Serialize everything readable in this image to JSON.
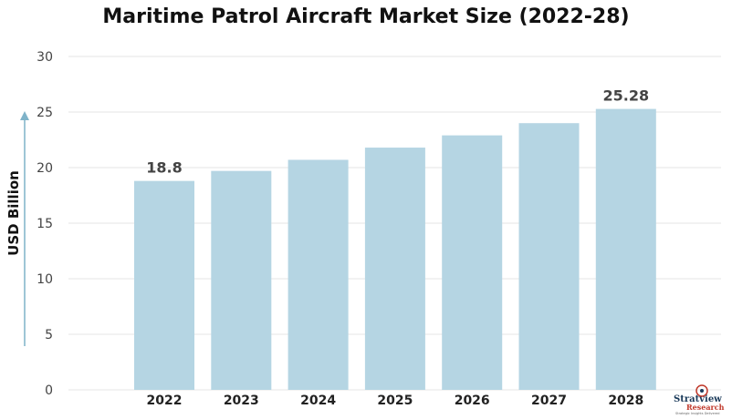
{
  "chart_data": {
    "type": "bar",
    "title": "Maritime Patrol Aircraft Market Size (2022-28)",
    "xlabel": "",
    "ylabel": "USD Billion",
    "categories": [
      "2022",
      "2023",
      "2024",
      "2025",
      "2026",
      "2027",
      "2028"
    ],
    "values": [
      18.8,
      19.7,
      20.7,
      21.8,
      22.9,
      24.0,
      25.28
    ],
    "data_labels": [
      "18.8",
      "",
      "",
      "",
      "",
      "",
      "25.28"
    ],
    "ylim": [
      0,
      30
    ],
    "yticks": [
      0,
      5,
      10,
      15,
      20,
      25,
      30
    ],
    "grid": true,
    "legend": "none",
    "colors": {
      "bar": "#b5d5e3",
      "grid": "#e6e6e6",
      "axis_arrow": "#7fb3c9"
    }
  },
  "logo": {
    "line1": "Stratview",
    "line2": "Research",
    "tagline": "Strategic Insights Delivered",
    "icon": "globe-target-icon"
  }
}
